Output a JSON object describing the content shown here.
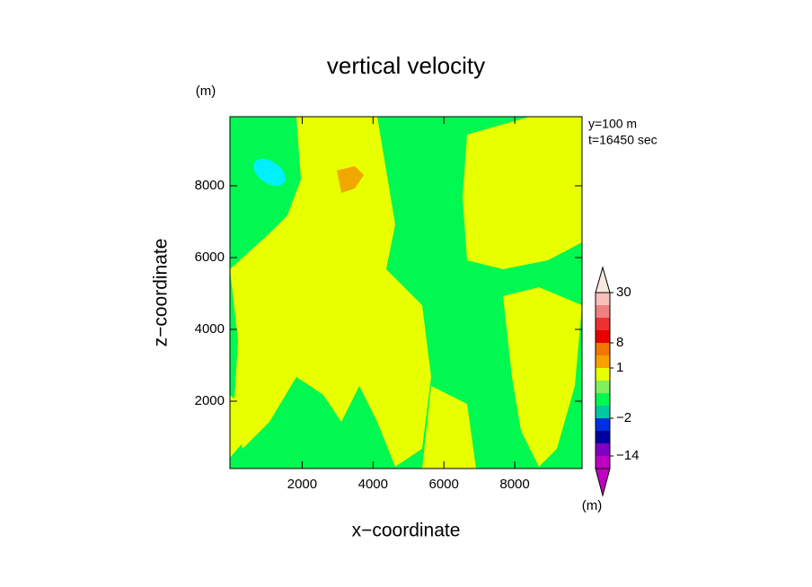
{
  "chart_data": {
    "type": "contour",
    "title": "vertical velocity",
    "ylabel_unit": "(m)",
    "annotations": [
      "y=100 m",
      "t=16450 sec"
    ],
    "xlabel": "x−coordinate",
    "ylabel": "z−coordinate",
    "xlim": [
      -40,
      9900
    ],
    "ylim": [
      125,
      9925
    ],
    "xticks": [
      2000,
      4000,
      6000,
      8000
    ],
    "yticks": [
      2000,
      4000,
      6000,
      8000
    ],
    "colorbar": {
      "unit": "(m)",
      "levels": [
        30,
        24,
        18,
        12,
        8,
        4,
        1,
        0.5,
        0,
        -0.5,
        -2,
        -6,
        -10,
        -14,
        -22
      ],
      "ticks": [
        30,
        8,
        1,
        {
          "value": -2,
          "label": "−2"
        },
        {
          "value": -14,
          "label": "−14"
        }
      ],
      "colors": [
        "#f8c0b8",
        "#f08080",
        "#f03030",
        "#e80000",
        "#f07800",
        "#f8a000",
        "#e8ff00",
        "#80f060",
        "#00f850",
        "#00c8a0",
        "#0030e0",
        "#0000a0",
        "#8000c0",
        "#c000c0"
      ],
      "over_color": "#f8e8e0",
      "under_color": "#c000c0"
    },
    "field_colors": {
      "background": "#00f850",
      "positive": "#e8ff00",
      "strong": "#f0a800",
      "negative": "#00f0ff"
    }
  }
}
